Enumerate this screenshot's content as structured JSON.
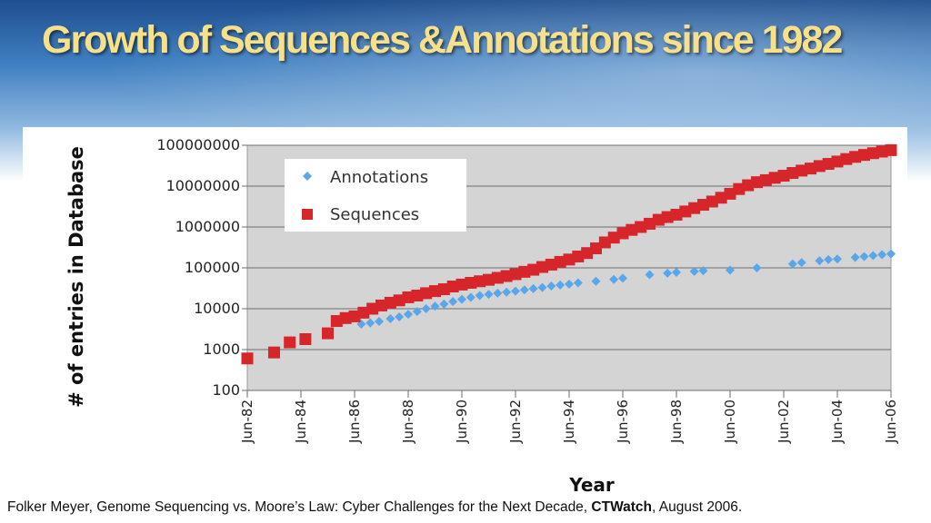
{
  "slide": {
    "title": "Growth of Sequences &Annotations since 1982",
    "caption_pre": "Folker Meyer, Genome Sequencing vs. Moore’s Law: Cyber Challenges for the Next Decade, ",
    "caption_bold": "CTWatch",
    "caption_post": ", August 2006."
  },
  "colors": {
    "title": "#f6e08a",
    "plot_bg": "#d4d4d4",
    "annotations": "#5aa6ea",
    "sequences": "#d7262b"
  },
  "chart_data": {
    "type": "scatter",
    "title": "",
    "xlabel": "Year",
    "ylabel": "# of entries in Database",
    "y_scale": "log",
    "ylim": [
      100,
      100000000
    ],
    "xlim": [
      "1982-06",
      "2006-06"
    ],
    "grid": "horizontal",
    "legend_position": "top-left",
    "y_ticks": [
      "100",
      "1000",
      "10000",
      "100000",
      "1000000",
      "10000000",
      "100000000"
    ],
    "x_ticks": [
      "Jun-82",
      "Jun-84",
      "Jun-86",
      "Jun-88",
      "Jun-90",
      "Jun-92",
      "Jun-94",
      "Jun-96",
      "Jun-98",
      "Jun-00",
      "Jun-02",
      "Jun-04",
      "Jun-06"
    ],
    "series": [
      {
        "name": "Annotations",
        "marker": "diamond",
        "points": [
          [
            "1986-09",
            4200
          ],
          [
            "1987-01",
            4500
          ],
          [
            "1987-05",
            4900
          ],
          [
            "1987-10",
            5700
          ],
          [
            "1988-02",
            6300
          ],
          [
            "1988-06",
            7300
          ],
          [
            "1988-10",
            8500
          ],
          [
            "1989-02",
            10000
          ],
          [
            "1989-06",
            11500
          ],
          [
            "1989-10",
            13000
          ],
          [
            "1990-02",
            15000
          ],
          [
            "1990-06",
            17000
          ],
          [
            "1990-10",
            19000
          ],
          [
            "1991-02",
            21000
          ],
          [
            "1991-06",
            22500
          ],
          [
            "1991-10",
            24000
          ],
          [
            "1992-02",
            25500
          ],
          [
            "1992-06",
            27000
          ],
          [
            "1992-10",
            29000
          ],
          [
            "1993-02",
            31000
          ],
          [
            "1993-06",
            33000
          ],
          [
            "1993-10",
            36000
          ],
          [
            "1994-02",
            38000
          ],
          [
            "1994-06",
            40000
          ],
          [
            "1994-10",
            43000
          ],
          [
            "1995-06",
            47000
          ],
          [
            "1996-02",
            52000
          ],
          [
            "1996-06",
            56000
          ],
          [
            "1997-06",
            68000
          ],
          [
            "1998-02",
            74000
          ],
          [
            "1998-06",
            78000
          ],
          [
            "1999-02",
            82000
          ],
          [
            "1999-06",
            85000
          ],
          [
            "2000-06",
            88000
          ],
          [
            "2001-06",
            100000
          ],
          [
            "2002-10",
            125000
          ],
          [
            "2003-02",
            135000
          ],
          [
            "2003-10",
            150000
          ],
          [
            "2004-02",
            160000
          ],
          [
            "2004-06",
            165000
          ],
          [
            "2005-02",
            180000
          ],
          [
            "2005-06",
            190000
          ],
          [
            "2005-10",
            200000
          ],
          [
            "2006-02",
            210000
          ],
          [
            "2006-06",
            220000
          ]
        ]
      },
      {
        "name": "Sequences",
        "marker": "square",
        "points": [
          [
            "1982-06",
            606
          ],
          [
            "1983-06",
            850
          ],
          [
            "1984-01",
            1500
          ],
          [
            "1984-08",
            1800
          ],
          [
            "1985-06",
            2500
          ],
          [
            "1985-10",
            5000
          ],
          [
            "1986-02",
            5900
          ],
          [
            "1986-06",
            6500
          ],
          [
            "1986-10",
            8000
          ],
          [
            "1987-02",
            10000
          ],
          [
            "1987-06",
            12000
          ],
          [
            "1987-10",
            14000
          ],
          [
            "1988-02",
            16000
          ],
          [
            "1988-06",
            19000
          ],
          [
            "1988-10",
            21000
          ],
          [
            "1989-02",
            24000
          ],
          [
            "1989-06",
            27000
          ],
          [
            "1989-10",
            30000
          ],
          [
            "1990-02",
            35000
          ],
          [
            "1990-06",
            39000
          ],
          [
            "1990-10",
            43000
          ],
          [
            "1991-02",
            47000
          ],
          [
            "1991-06",
            51000
          ],
          [
            "1991-10",
            57000
          ],
          [
            "1992-02",
            63000
          ],
          [
            "1992-06",
            70000
          ],
          [
            "1992-10",
            80000
          ],
          [
            "1993-02",
            90000
          ],
          [
            "1993-06",
            105000
          ],
          [
            "1993-10",
            120000
          ],
          [
            "1994-02",
            140000
          ],
          [
            "1994-06",
            160000
          ],
          [
            "1994-10",
            190000
          ],
          [
            "1995-02",
            230000
          ],
          [
            "1995-06",
            300000
          ],
          [
            "1995-10",
            420000
          ],
          [
            "1996-02",
            550000
          ],
          [
            "1996-06",
            700000
          ],
          [
            "1996-10",
            850000
          ],
          [
            "1997-02",
            1000000
          ],
          [
            "1997-06",
            1200000
          ],
          [
            "1997-10",
            1500000
          ],
          [
            "1998-02",
            1750000
          ],
          [
            "1998-06",
            2000000
          ],
          [
            "1998-10",
            2400000
          ],
          [
            "1999-02",
            2900000
          ],
          [
            "1999-06",
            3500000
          ],
          [
            "1999-10",
            4200000
          ],
          [
            "2000-02",
            5200000
          ],
          [
            "2000-06",
            6500000
          ],
          [
            "2000-10",
            8500000
          ],
          [
            "2001-02",
            10500000
          ],
          [
            "2001-06",
            12500000
          ],
          [
            "2001-10",
            14000000
          ],
          [
            "2002-02",
            16000000
          ],
          [
            "2002-06",
            18000000
          ],
          [
            "2002-10",
            21000000
          ],
          [
            "2003-02",
            24000000
          ],
          [
            "2003-06",
            27000000
          ],
          [
            "2003-10",
            31000000
          ],
          [
            "2004-02",
            35000000
          ],
          [
            "2004-06",
            40000000
          ],
          [
            "2004-10",
            46000000
          ],
          [
            "2005-02",
            52000000
          ],
          [
            "2005-06",
            58000000
          ],
          [
            "2005-10",
            64000000
          ],
          [
            "2006-02",
            70000000
          ],
          [
            "2006-06",
            76000000
          ]
        ]
      }
    ]
  }
}
